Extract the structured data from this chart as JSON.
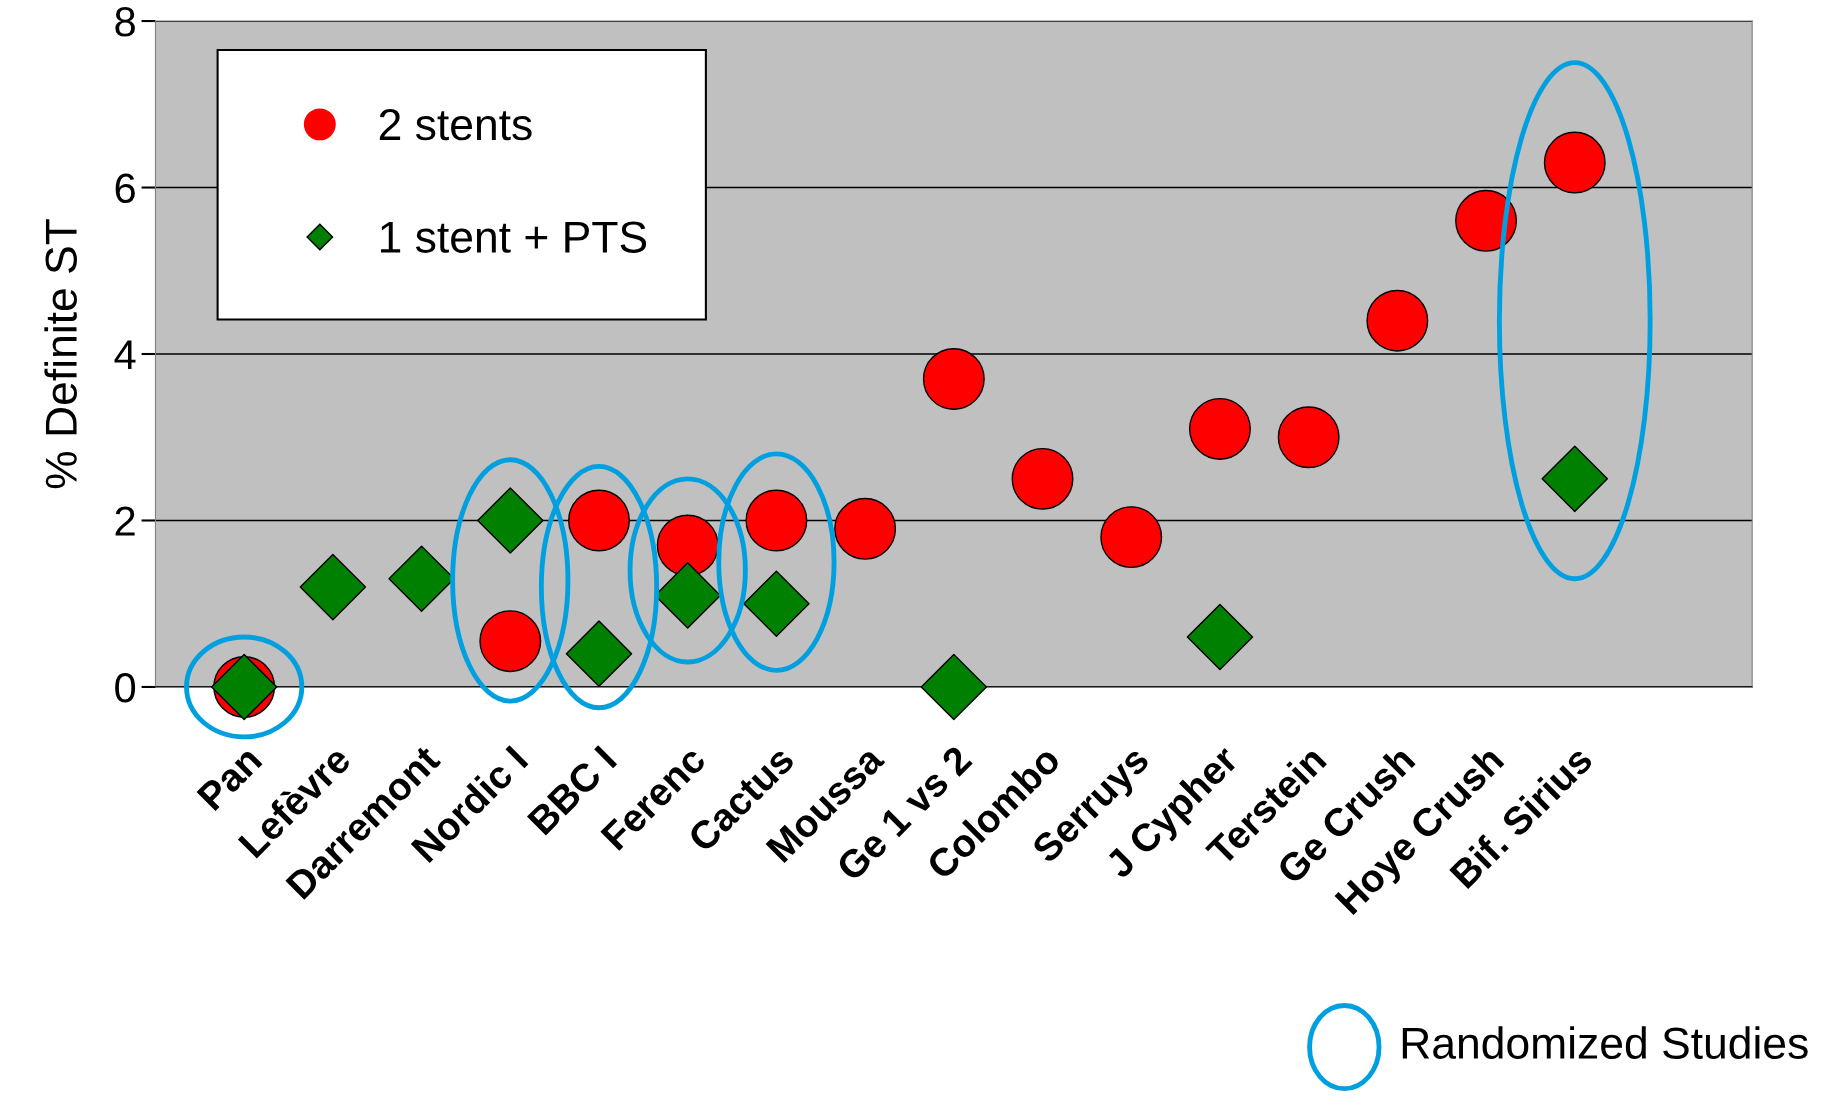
{
  "chart_data": {
    "type": "scatter",
    "ylabel": "% Definite ST",
    "categories": [
      "Pan",
      "Lefèvre",
      "Darremont",
      "Nordic I",
      "BBC I",
      "Ferenc",
      "Cactus",
      "Moussa",
      "Ge 1 vs 2",
      "Colombo",
      "Serruys",
      "J Cypher",
      "Terstein",
      "Ge Crush",
      "Hoye Crush",
      "Bif. Sirius"
    ],
    "series": [
      {
        "name": "2 stents",
        "color": "#ff0000",
        "marker": "circle",
        "values": [
          0,
          null,
          null,
          0.55,
          2.0,
          1.7,
          2.0,
          1.9,
          3.7,
          2.5,
          1.8,
          3.1,
          3.0,
          4.4,
          5.6,
          6.3
        ]
      },
      {
        "name": "1 stent + PTS",
        "color": "#008000",
        "marker": "diamond",
        "values": [
          0,
          1.2,
          1.3,
          2.0,
          0.4,
          1.1,
          1.0,
          null,
          0,
          null,
          null,
          0.6,
          null,
          null,
          null,
          2.5
        ]
      }
    ],
    "ylim": [
      0,
      8
    ],
    "yticks": [
      0,
      2,
      4,
      6,
      8
    ],
    "grid": "y",
    "legend": "top left",
    "annotations": [
      "Randomized Studies"
    ]
  }
}
